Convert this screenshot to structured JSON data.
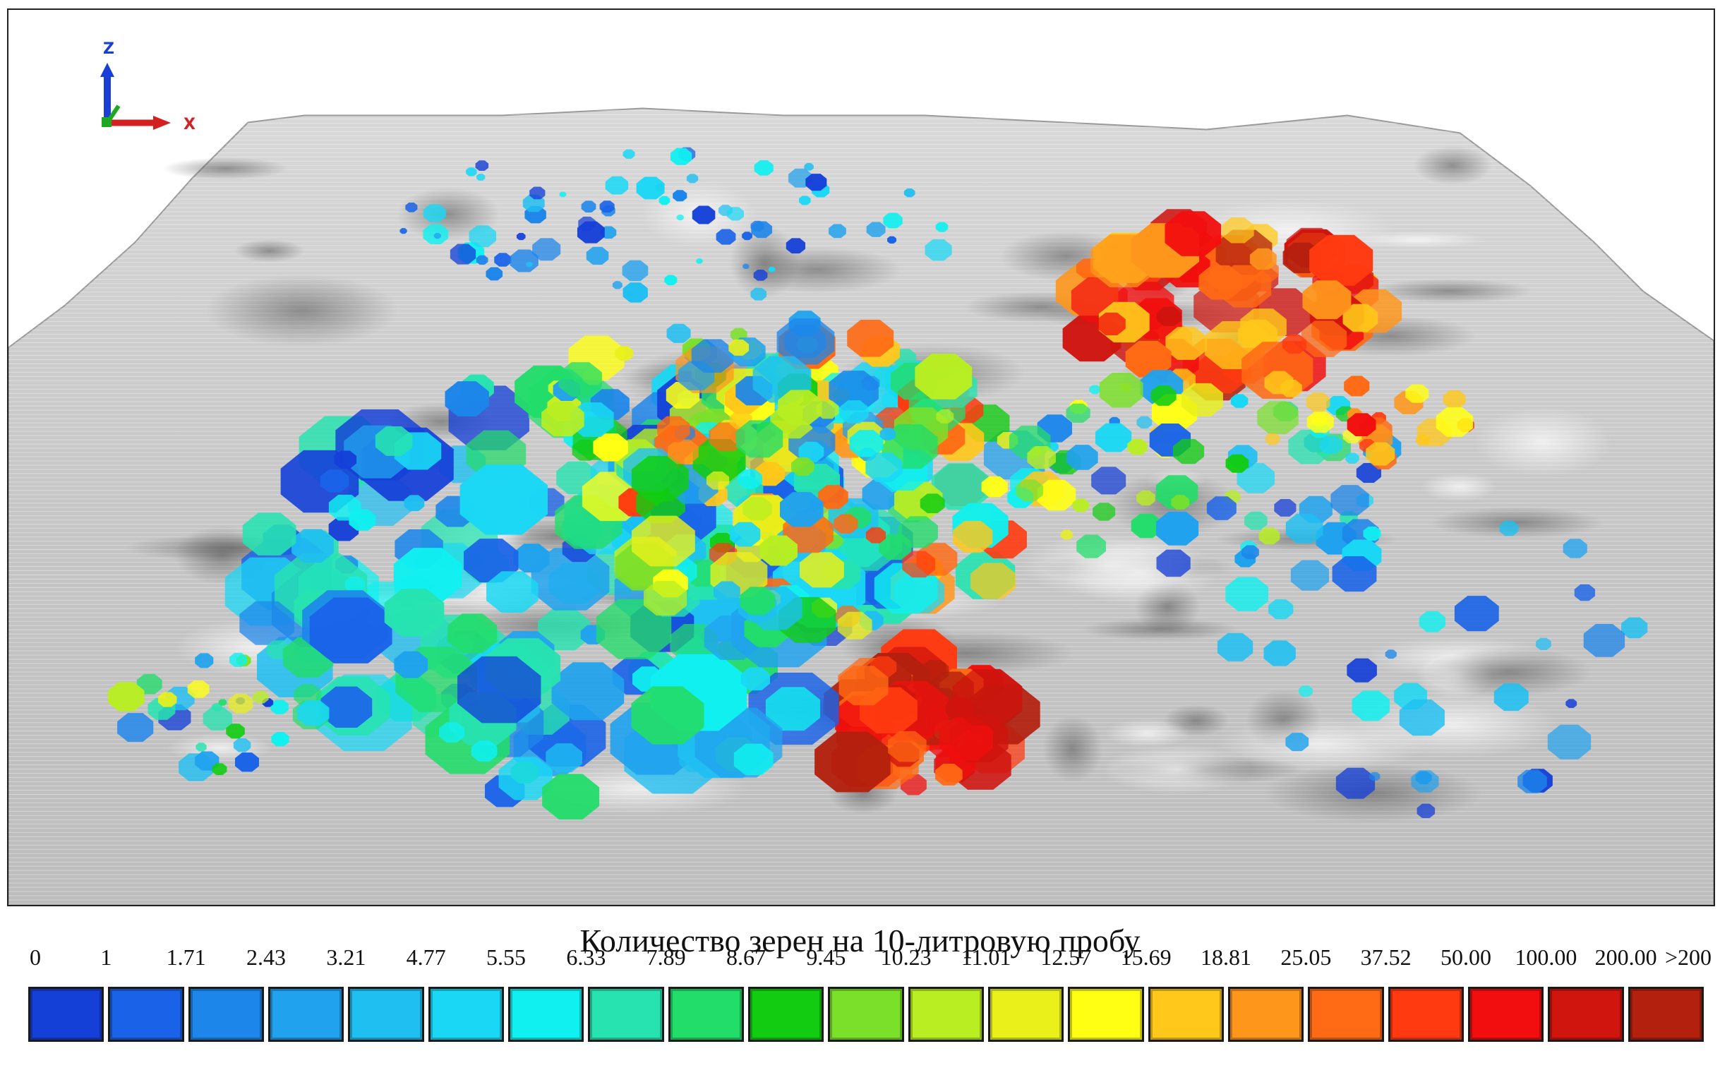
{
  "map": {
    "axis_labels": {
      "z": "Z",
      "x": "X"
    },
    "axis_colors": {
      "z": "#1a3fd6",
      "x": "#d42020",
      "y": "#1fa81f"
    },
    "surface_color": "#c9c9c9"
  },
  "legend": {
    "title": "Количество зерен на 10-литровую пробу",
    "labels": [
      "0",
      "1",
      "1.71",
      "2.43",
      "3.21",
      "4.77",
      "5.55",
      "6.33",
      "7.89",
      "8.67",
      "9.45",
      "10.23",
      "11.01",
      "12.57",
      "15.69",
      "18.81",
      "25.05",
      "37.52",
      "50.00",
      "100.00",
      "200.00",
      ">200"
    ],
    "colors": [
      "#1540d8",
      "#1a63e8",
      "#1d86ea",
      "#20a2ee",
      "#1fbff2",
      "#1ad8f5",
      "#10f0f0",
      "#27e3b0",
      "#22dd6a",
      "#12cc12",
      "#7be02a",
      "#b8ee22",
      "#e9f01a",
      "#ffff14",
      "#ffc81a",
      "#ff961c",
      "#ff6a14",
      "#ff3a10",
      "#f20e0e",
      "#d0140e",
      "#b4200e"
    ]
  }
}
